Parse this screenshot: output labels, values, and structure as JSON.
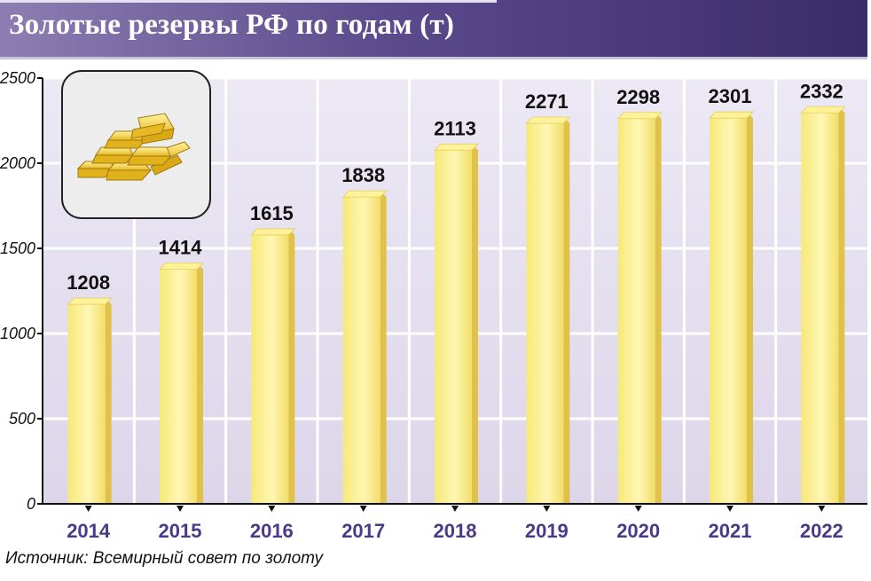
{
  "header": {
    "title": "Золотые резервы РФ по годам (т)"
  },
  "footer": {
    "source": "Источник: Всемирный совет по золоту"
  },
  "illustration": {
    "icon": "gold-bars-icon"
  },
  "colors": {
    "header_left": "#8c7db2",
    "header_right": "#3a2b6b",
    "plot_background": "#e4dfee",
    "bar_fill": "#f7ea7a",
    "bar_highlight": "#fff6b0",
    "bar_shadow": "#e3c64a",
    "year_label": "#4b3a88",
    "value_label": "#111111"
  },
  "chart_data": {
    "type": "bar",
    "title": "Золотые резервы РФ по годам (т)",
    "categories": [
      "2014",
      "2015",
      "2016",
      "2017",
      "2018",
      "2019",
      "2020",
      "2021",
      "2022"
    ],
    "values": [
      1208,
      1414,
      1615,
      1838,
      2113,
      2271,
      2298,
      2301,
      2332
    ],
    "value_labels": [
      "1208",
      "1414",
      "1615",
      "1838",
      "2113",
      "2271",
      "2298",
      "2301",
      "2332"
    ],
    "y_ticks": [
      0,
      500,
      1000,
      1500,
      2000,
      2500
    ],
    "y_tick_labels": [
      "0",
      "500",
      "1000",
      "1500",
      "2000",
      "2500"
    ],
    "ylim": [
      0,
      2500
    ],
    "xlabel": "",
    "ylabel": "",
    "grid": true,
    "legend": "none"
  }
}
